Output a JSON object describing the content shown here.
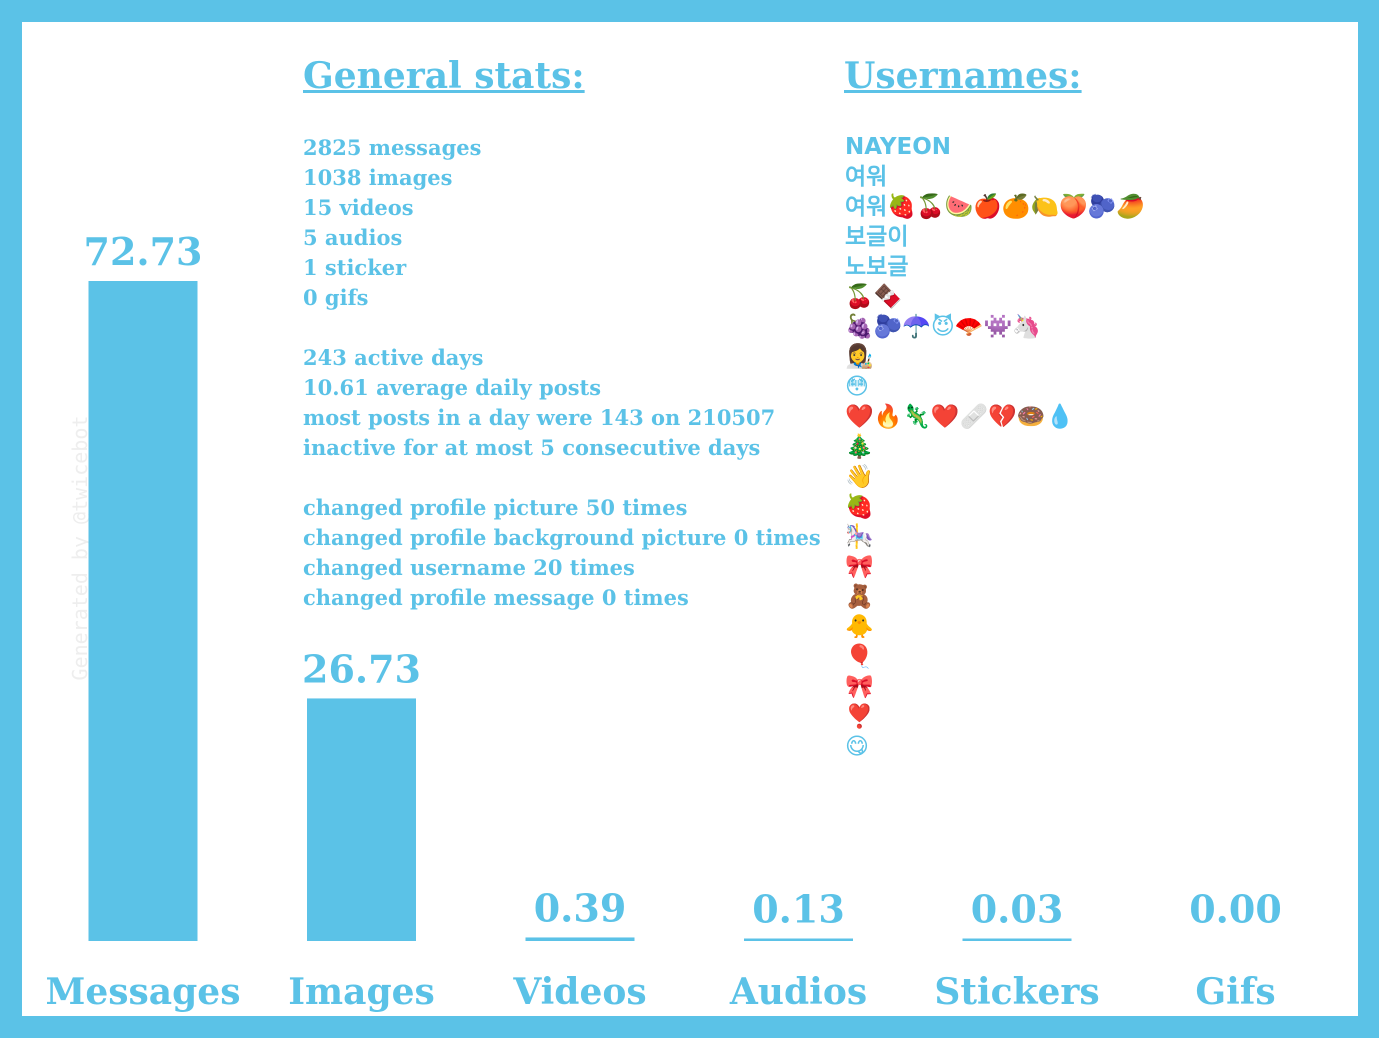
{
  "watermark": "Generated by @twicebot_",
  "colors": {
    "accent": "#5bc2e7",
    "background": "#ffffff",
    "frame": "#5bc2e7"
  },
  "chart_data": {
    "type": "bar",
    "categories": [
      "Messages",
      "Images",
      "Videos",
      "Audios",
      "Stickers",
      "Gifs"
    ],
    "values": [
      72.73,
      26.73,
      0.39,
      0.13,
      0.03,
      0.0
    ],
    "value_labels": [
      "72.73",
      "26.73",
      "0.39",
      "0.13",
      "0.03",
      "0.00"
    ],
    "ylim": [
      0,
      72.73
    ],
    "grid": false,
    "legend": "none"
  },
  "general_stats": {
    "title": "General stats:",
    "lines": [
      "2825 messages",
      "1038 images",
      "15 videos",
      "5 audios",
      "1 sticker",
      "0 gifs",
      "",
      "243 active days",
      "10.61 average daily posts",
      "most posts in a day were 143 on 210507",
      "inactive for at most 5 consecutive days",
      "",
      "changed profile picture 50 times",
      "changed profile background picture 0 times",
      "changed username 20 times",
      "changed profile message 0 times"
    ]
  },
  "usernames": {
    "title": "Usernames:",
    "items": [
      "NAYEON",
      "여워",
      "여워🍓🍒🍉🍎🍊🍋🍑🫐🥭",
      "보글이",
      "노보글",
      "🍒🍫",
      "🍇🫐☂️😈🪭👾🦄",
      "👩‍🎨",
      "😳",
      "❤️🔥🦎❤️🩹💔🍩💧",
      "🎄",
      "👋",
      "🍓",
      "🎠",
      "🎀",
      "🧸",
      "🐥",
      "🎈",
      "🎀",
      "❣️",
      "😋"
    ]
  }
}
